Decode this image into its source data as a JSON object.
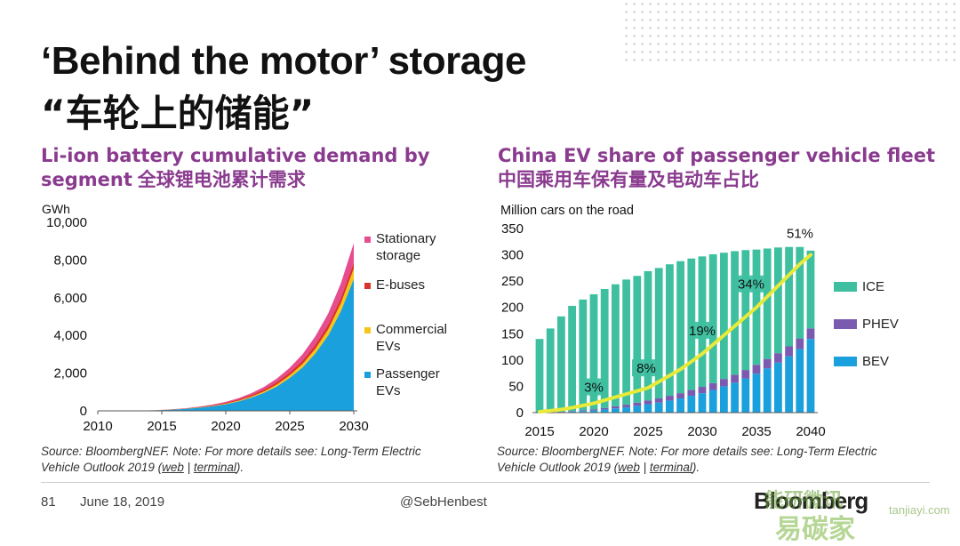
{
  "slide": {
    "title_en": "‘Behind the motor’ storage",
    "title_zh": "“车轮上的储能”",
    "page_number": "81",
    "date": "June 18, 2019",
    "handle": "@SebHenbest",
    "brand": "Bloomberg",
    "watermark_1": "能研微讯",
    "watermark_2": "易碳家",
    "watermark_3": "tanjiayi.com"
  },
  "left_chart": {
    "title_en": "Li-ion battery cumulative demand by segment",
    "title_zh": "全球锂电池累计需求",
    "source_prefix": "Source: BloombergNEF. Note: For more details see: Long-Term Electric Vehicle Outlook 2019 (",
    "source_link1": "web",
    "source_sep": " | ",
    "source_link2": "terminal",
    "source_suffix": ")."
  },
  "right_chart": {
    "title_en": "China EV share of passenger vehicle fleet",
    "title_zh": "中国乘用车保有量及电动车占比",
    "source_prefix": "Source: BloombergNEF. Note: For more details see: Long-Term Electric Vehicle Outlook 2019 (",
    "source_link1": "web",
    "source_sep": " | ",
    "source_link2": "terminal",
    "source_suffix": ")."
  },
  "colors": {
    "passenger": "#1aa0dc",
    "commercial": "#f5c518",
    "ebuses": "#d9342b",
    "stationary": "#e64d8f",
    "ice": "#3dbfa0",
    "phev": "#7b5bb0",
    "bev": "#1aa0dc",
    "line": "#e8ea3a",
    "accent": "#8a3b8f"
  },
  "chart_data": [
    {
      "type": "area",
      "stacked": true,
      "ylabel": "GWh",
      "ylim": [
        0,
        10000
      ],
      "yticks": [
        "0",
        "2,000",
        "4,000",
        "6,000",
        "8,000",
        "10,000"
      ],
      "xticks": [
        "2010",
        "2015",
        "2020",
        "2025",
        "2030"
      ],
      "x": [
        2010,
        2011,
        2012,
        2013,
        2014,
        2015,
        2016,
        2017,
        2018,
        2019,
        2020,
        2021,
        2022,
        2023,
        2024,
        2025,
        2026,
        2027,
        2028,
        2029,
        2030
      ],
      "series": [
        {
          "name": "Passenger EVs",
          "values": [
            0,
            2,
            5,
            10,
            20,
            40,
            70,
            110,
            170,
            250,
            350,
            500,
            700,
            960,
            1300,
            1750,
            2300,
            3050,
            4000,
            5300,
            7000
          ]
        },
        {
          "name": "Commercial EVs",
          "values": [
            0,
            0,
            0,
            0,
            1,
            2,
            4,
            7,
            11,
            17,
            25,
            37,
            52,
            72,
            100,
            135,
            180,
            240,
            320,
            420,
            550
          ]
        },
        {
          "name": "E-buses",
          "values": [
            0,
            0,
            0,
            1,
            3,
            6,
            12,
            20,
            30,
            42,
            56,
            72,
            90,
            110,
            135,
            160,
            190,
            225,
            260,
            300,
            340
          ]
        },
        {
          "name": "Stationary storage",
          "values": [
            0,
            0,
            0,
            1,
            2,
            4,
            7,
            12,
            20,
            30,
            45,
            65,
            95,
            130,
            180,
            245,
            330,
            440,
            580,
            760,
            1010
          ]
        }
      ],
      "legend": [
        {
          "label": "Stationary storage",
          "color_key": "stationary"
        },
        {
          "label": "E-buses",
          "color_key": "ebuses"
        },
        {
          "label": "Commercial EVs",
          "color_key": "commercial"
        },
        {
          "label": "Passenger EVs",
          "color_key": "passenger"
        }
      ],
      "legend_position": "right"
    },
    {
      "type": "bar",
      "stacked": true,
      "ylabel": "Million cars on the road",
      "ylim": [
        0,
        350
      ],
      "yticks": [
        "0",
        "50",
        "100",
        "150",
        "200",
        "250",
        "300",
        "350"
      ],
      "xticks": [
        "2015",
        "2020",
        "2025",
        "2030",
        "2035",
        "2040"
      ],
      "categories": [
        2015,
        2016,
        2017,
        2018,
        2019,
        2020,
        2021,
        2022,
        2023,
        2024,
        2025,
        2026,
        2027,
        2028,
        2029,
        2030,
        2031,
        2032,
        2033,
        2034,
        2035,
        2036,
        2037,
        2038,
        2039,
        2040
      ],
      "series": [
        {
          "name": "BEV",
          "values": [
            0.3,
            0.6,
            1,
            2,
            3,
            4,
            6,
            8,
            10,
            13,
            16,
            19,
            23,
            27,
            32,
            37,
            43,
            50,
            57,
            65,
            74,
            84,
            95,
            107,
            121,
            140
          ]
        },
        {
          "name": "PHEV",
          "values": [
            0.2,
            0.4,
            0.6,
            1,
            1.5,
            2,
            3,
            4,
            5,
            6,
            7,
            8,
            9,
            10,
            11,
            12,
            13,
            14,
            15,
            16,
            17,
            18,
            18,
            19,
            20,
            20
          ]
        },
        {
          "name": "ICE",
          "values": [
            139.5,
            159,
            181.4,
            200,
            210.5,
            219,
            226,
            232,
            238,
            241,
            246,
            248,
            250,
            251,
            250,
            248,
            245,
            240,
            235,
            228,
            219,
            210,
            201,
            189,
            174,
            148
          ]
        }
      ],
      "line": {
        "name": "EV share",
        "values": [
          0.3,
          0.6,
          1.0,
          1.6,
          2.3,
          3,
          4,
          5,
          6,
          7,
          8,
          10,
          12,
          14,
          16.5,
          19,
          22,
          25,
          28,
          31,
          34,
          37.5,
          41,
          44.5,
          48,
          51
        ]
      },
      "annotations": [
        {
          "year": 2020,
          "label": "3%"
        },
        {
          "year": 2025,
          "label": "8%"
        },
        {
          "year": 2030,
          "label": "19%"
        },
        {
          "year": 2035,
          "label": "34%"
        },
        {
          "year": 2040,
          "label": "51%"
        }
      ],
      "legend": [
        {
          "label": "ICE",
          "color_key": "ice"
        },
        {
          "label": "PHEV",
          "color_key": "phev"
        },
        {
          "label": "BEV",
          "color_key": "bev"
        }
      ],
      "legend_position": "right"
    }
  ]
}
